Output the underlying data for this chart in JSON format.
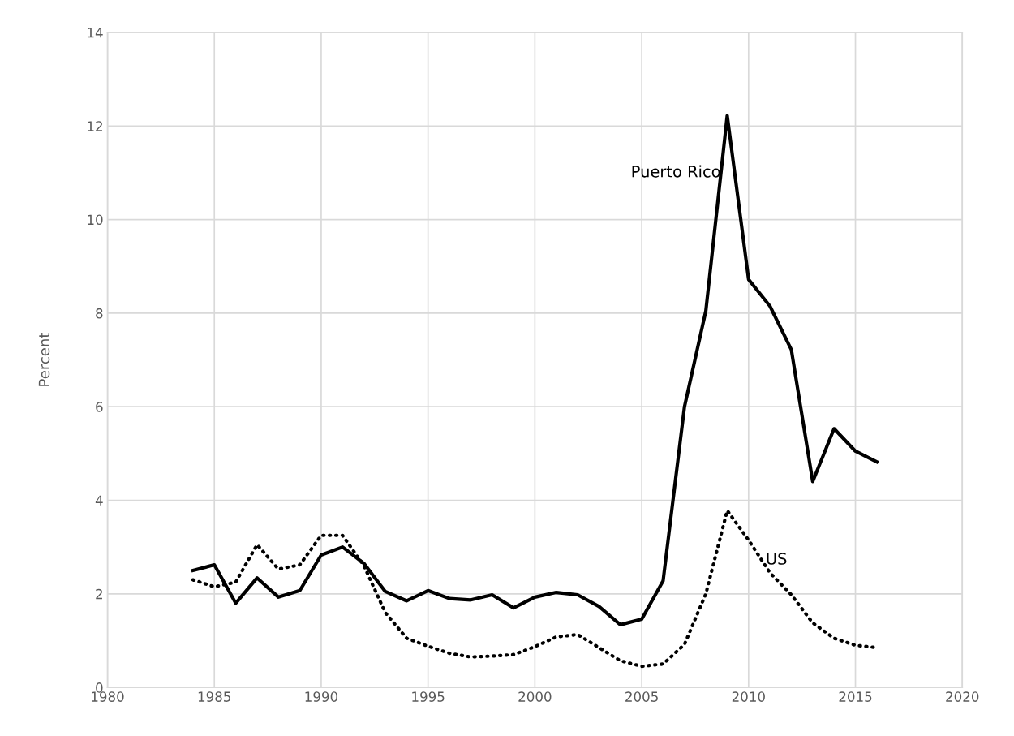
{
  "chart_data": {
    "type": "line",
    "ylabel": "Percent",
    "x": [
      1984,
      1985,
      1986,
      1987,
      1988,
      1989,
      1990,
      1991,
      1992,
      1993,
      1994,
      1995,
      1996,
      1997,
      1998,
      1999,
      2000,
      2001,
      2002,
      2003,
      2004,
      2005,
      2006,
      2007,
      2008,
      2009,
      2010,
      2011,
      2012,
      2013,
      2014,
      2015,
      2016
    ],
    "series": [
      {
        "name": "Puerto Rico",
        "color": "#000000",
        "line_style": "solid",
        "values": [
          2.5,
          2.62,
          1.8,
          2.34,
          1.93,
          2.07,
          2.83,
          3.0,
          2.65,
          2.05,
          1.85,
          2.07,
          1.9,
          1.87,
          1.98,
          1.7,
          1.93,
          2.03,
          1.98,
          1.73,
          1.34,
          1.46,
          2.28,
          6.0,
          8.05,
          12.22,
          8.72,
          8.15,
          7.22,
          4.4,
          5.53,
          5.05,
          4.82
        ]
      },
      {
        "name": "US",
        "color": "#000000",
        "line_style": "dotted",
        "values": [
          2.3,
          2.15,
          2.25,
          3.05,
          2.53,
          2.62,
          3.25,
          3.25,
          2.6,
          1.6,
          1.05,
          0.88,
          0.73,
          0.65,
          0.67,
          0.7,
          0.87,
          1.08,
          1.13,
          0.85,
          0.57,
          0.45,
          0.5,
          0.92,
          2.0,
          3.78,
          3.15,
          2.45,
          1.98,
          1.38,
          1.05,
          0.9,
          0.85
        ]
      }
    ],
    "xlim": [
      1980,
      2020
    ],
    "xticks": [
      1980,
      1985,
      1990,
      1995,
      2000,
      2005,
      2010,
      2015,
      2020
    ],
    "ylim": [
      0,
      14
    ],
    "yticks": [
      0,
      2,
      4,
      6,
      8,
      10,
      12,
      14
    ],
    "grid": true,
    "legend": false
  }
}
